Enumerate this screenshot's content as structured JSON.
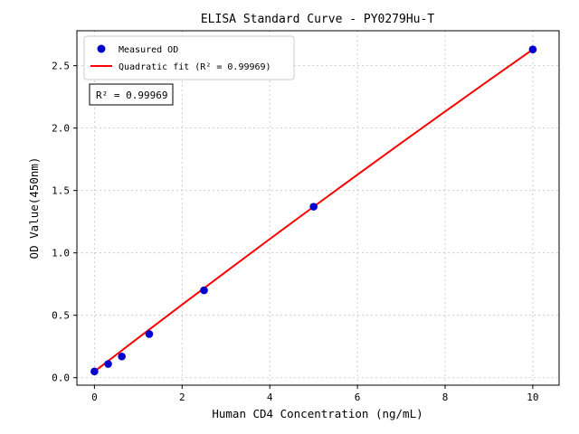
{
  "figure": {
    "background": "#ffffff"
  },
  "chart_data": {
    "type": "scatter",
    "title": "ELISA Standard Curve - PY0279Hu-T",
    "xlabel": "Human CD4 Concentration (ng/mL)",
    "ylabel": "OD Value(450nm)",
    "xlim": [
      -0.4,
      10.6
    ],
    "ylim": [
      -0.06,
      2.78
    ],
    "xticks": [
      0,
      2,
      4,
      6,
      8,
      10
    ],
    "xtick_labels": [
      "0",
      "2",
      "4",
      "6",
      "8",
      "10"
    ],
    "yticks": [
      0,
      0.5,
      1.0,
      1.5,
      2.0,
      2.5
    ],
    "ytick_labels": [
      "0.0",
      "0.5",
      "1.0",
      "1.5",
      "2.0",
      "2.5"
    ],
    "grid": true,
    "legend_position": "upper-left",
    "annotation": "R² = 0.99969",
    "series": [
      {
        "name": "Measured OD",
        "type": "scatter",
        "color": "#0000cd",
        "x": [
          0,
          0.313,
          0.625,
          1.25,
          2.5,
          5,
          10
        ],
        "y": [
          0.05,
          0.11,
          0.17,
          0.35,
          0.7,
          1.37,
          2.63
        ]
      },
      {
        "name": "Quadratic fit (R² = 0.99969)",
        "type": "line",
        "color": "#ff0000",
        "x": [
          0,
          1,
          2,
          3,
          4,
          5,
          6,
          7,
          8,
          9,
          10
        ],
        "y": [
          0.05,
          0.319,
          0.585,
          0.849,
          1.111,
          1.37,
          1.627,
          1.881,
          2.133,
          2.383,
          2.63
        ]
      }
    ]
  }
}
